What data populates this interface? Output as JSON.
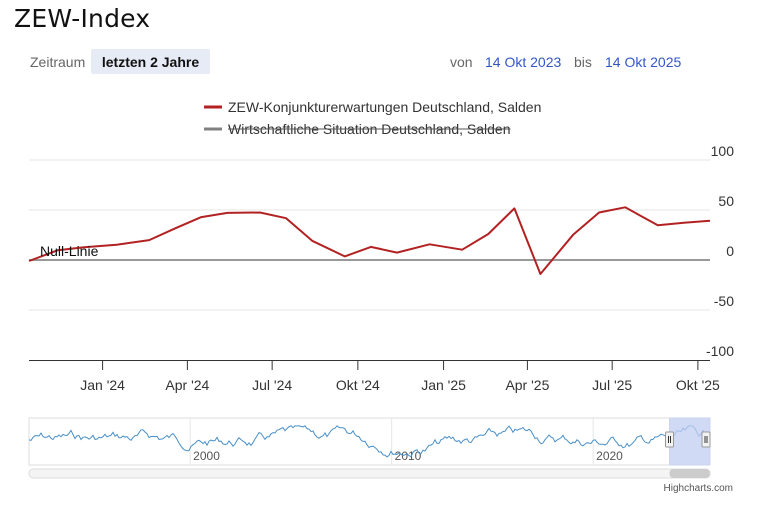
{
  "header": {
    "title": "ZEW-Index",
    "range_label": "Zeitraum",
    "range_button": "letzten 2 Jahre",
    "from_label": "von",
    "from_value": "14 Okt 2023",
    "to_label": "bis",
    "to_value": "14 Okt 2025"
  },
  "colors": {
    "series_active": "#b22222",
    "series_hidden": "#808080",
    "grid": "#e6e6e6",
    "zero_line": "#999999",
    "navigator_line": "#4a90c8",
    "navigator_selection": "#c2cdf2",
    "link": "#3355cc"
  },
  "chart_data": {
    "type": "line",
    "title": "",
    "xlabel": "",
    "ylabel": "",
    "ylim": [
      -100,
      100
    ],
    "yticks": [
      100,
      50,
      0,
      -50,
      -100
    ],
    "ytick_labels": [
      "100",
      "50",
      "0",
      "-50",
      "-100"
    ],
    "xlim": [
      "2023-10-14",
      "2025-10-14"
    ],
    "xticks": [
      "2024-01-01",
      "2024-04-01",
      "2024-07-01",
      "2024-10-01",
      "2025-01-01",
      "2025-04-01",
      "2025-07-01",
      "2025-10-01"
    ],
    "xtick_labels": [
      "Jan '24",
      "Apr '24",
      "Jul '24",
      "Okt '24",
      "Jan '25",
      "Apr '25",
      "Jul '25",
      "Okt '25"
    ],
    "plot_line": {
      "value": 0,
      "label": "Null-Linie"
    },
    "legend_position": "top-center",
    "grid": true,
    "series": [
      {
        "name": "ZEW-Konjunkturerwartungen Deutschland, Salden",
        "visible": true,
        "x": [
          "2023-10-14",
          "2023-11-14",
          "2023-12-12",
          "2024-01-16",
          "2024-02-20",
          "2024-03-19",
          "2024-04-16",
          "2024-05-14",
          "2024-06-18",
          "2024-07-16",
          "2024-08-13",
          "2024-09-17",
          "2024-10-15",
          "2024-11-12",
          "2024-12-17",
          "2025-01-21",
          "2025-02-18",
          "2025-03-18",
          "2025-04-15",
          "2025-05-20",
          "2025-06-17",
          "2025-07-15",
          "2025-08-19",
          "2025-09-16",
          "2025-10-14"
        ],
        "values": [
          -1,
          9.8,
          12.8,
          15.2,
          19.9,
          31.7,
          42.9,
          47.1,
          47.5,
          41.8,
          19.2,
          3.6,
          13.1,
          7.4,
          15.7,
          10.3,
          26,
          51.6,
          -14,
          25.2,
          47.5,
          52.7,
          34.7,
          37.3,
          39.3
        ]
      },
      {
        "name": "Wirtschaftliche Situation Deutschland, Salden",
        "visible": false
      }
    ]
  },
  "navigator": {
    "labels": [
      "2000",
      "2010",
      "2020"
    ],
    "label_years": [
      2000,
      2010,
      2020
    ],
    "x_start_year": 1992,
    "x_end_year": 2025.8,
    "selection_start_year": 2023.79,
    "selection_end_year": 2025.79
  },
  "credits": "Highcharts.com"
}
